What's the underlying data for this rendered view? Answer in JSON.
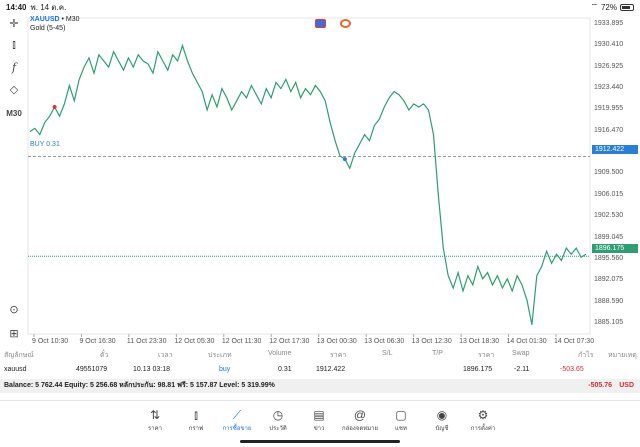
{
  "status": {
    "time": "14:40",
    "date": "พ. 14 ต.ค.",
    "battery": "72%"
  },
  "chart": {
    "symbol": "XAUUSD",
    "timeframe_suffix": "• M30",
    "subtitle": "Gold (5-45)",
    "tf_button": "M30",
    "buy_line_label": "BUY 0.31",
    "y_ticks": [
      "1933.895",
      "1930.410",
      "1926.925",
      "1923.440",
      "1919.955",
      "1916.470",
      "1912.985",
      "1909.500",
      "1906.015",
      "1902.530",
      "1899.045",
      "1895.560",
      "1892.075",
      "1888.590",
      "1885.105"
    ],
    "buy_tag": "1912.422",
    "bid_tag": "1896.175",
    "x_ticks": [
      "9 Oct 10:30",
      "9 Oct 16:30",
      "11 Oct 23:30",
      "12 Oct 05:30",
      "12 Oct 11:30",
      "12 Oct 17:30",
      "13 Oct 00:30",
      "13 Oct 06:30",
      "13 Oct 12:30",
      "13 Oct 18:30",
      "14 Oct 01:30",
      "14 Oct 07:30"
    ],
    "colors": {
      "line": "#2e9d72",
      "buy_line": "#2a7fd4",
      "bid_line": "#2e9d72"
    }
  },
  "chart_data": {
    "type": "line",
    "title": "XAUUSD • M30",
    "ylim": [
      1883.5,
      1935
    ],
    "series": [
      {
        "name": "Gold (5-45)",
        "values": [
          1916.5,
          1917.0,
          1916.0,
          1918.0,
          1919.0,
          1920.5,
          1919.0,
          1921.0,
          1924.0,
          1921.5,
          1925.0,
          1927.0,
          1928.5,
          1926.0,
          1929.0,
          1928.0,
          1927.0,
          1929.5,
          1928.0,
          1926.5,
          1928.5,
          1927.0,
          1929.0,
          1928.0,
          1927.5,
          1926.0,
          1929.5,
          1928.0,
          1926.5,
          1929.0,
          1928.0,
          1930.5,
          1928.0,
          1926.0,
          1924.5,
          1923.0,
          1920.0,
          1922.5,
          1920.5,
          1923.5,
          1922.0,
          1920.0,
          1921.5,
          1923.0,
          1922.0,
          1924.0,
          1922.5,
          1921.0,
          1923.5,
          1922.0,
          1924.5,
          1923.5,
          1925.0,
          1923.0,
          1924.5,
          1922.0,
          1923.5,
          1922.5,
          1924.0,
          1923.0,
          1921.5,
          1918.0,
          1915.0,
          1912.5,
          1912.0,
          1910.5,
          1913.0,
          1914.5,
          1916.0,
          1915.0,
          1917.5,
          1918.5,
          1920.5,
          1922.0,
          1923.0,
          1922.5,
          1921.5,
          1920.0,
          1921.0,
          1920.5,
          1921.0,
          1920.0,
          1916.0,
          1906.0,
          1897.5,
          1893.0,
          1891.0,
          1893.5,
          1890.5,
          1893.0,
          1891.5,
          1894.5,
          1892.5,
          1893.5,
          1891.5,
          1893.0,
          1891.0,
          1892.5,
          1890.5,
          1893.0,
          1891.5,
          1889.0,
          1885.0,
          1893.0,
          1894.5,
          1897.0,
          1895.0,
          1896.5,
          1895.5,
          1897.5,
          1896.5,
          1897.5,
          1896.0,
          1896.5
        ]
      }
    ]
  },
  "positions": {
    "headers": [
      "สัญลักษณ์",
      "ตั๋ว",
      "เวลา",
      "ประเภท",
      "Volume",
      "ราคา",
      "S/L",
      "T/P",
      "ราคา",
      "Swap",
      "กำไร",
      "หมายเหตุ"
    ],
    "row": {
      "symbol": "xauusd",
      "ticket": "49551079",
      "time": "10.13 03:18",
      "type": "buy",
      "volume": "0.31",
      "open_price": "1912.422",
      "sl": "",
      "tp": "",
      "price": "1896.175",
      "swap": "-2.11",
      "profit": "-503.65",
      "comment": ""
    },
    "balance_text": "Balance: 5 762.44  Equity: 5 256.68  หลักประกัน: 98.81  ฟรี: 5 157.87  Level: 5 319.99%",
    "total_profit": "-505.76",
    "currency": "USD"
  },
  "nav": [
    {
      "label": "ราคา",
      "icon": "quotes-icon"
    },
    {
      "label": "กราฟ",
      "icon": "chart-icon"
    },
    {
      "label": "การซื้อขาย",
      "icon": "trade-icon",
      "active": true
    },
    {
      "label": "ประวัติ",
      "icon": "history-icon"
    },
    {
      "label": "ข่าว",
      "icon": "news-icon"
    },
    {
      "label": "กล่องจดหมาย",
      "icon": "mailbox-icon"
    },
    {
      "label": "แชท",
      "icon": "chat-icon"
    },
    {
      "label": "บัญชี",
      "icon": "account-icon"
    },
    {
      "label": "การตั้งค่า",
      "icon": "settings-icon"
    }
  ]
}
